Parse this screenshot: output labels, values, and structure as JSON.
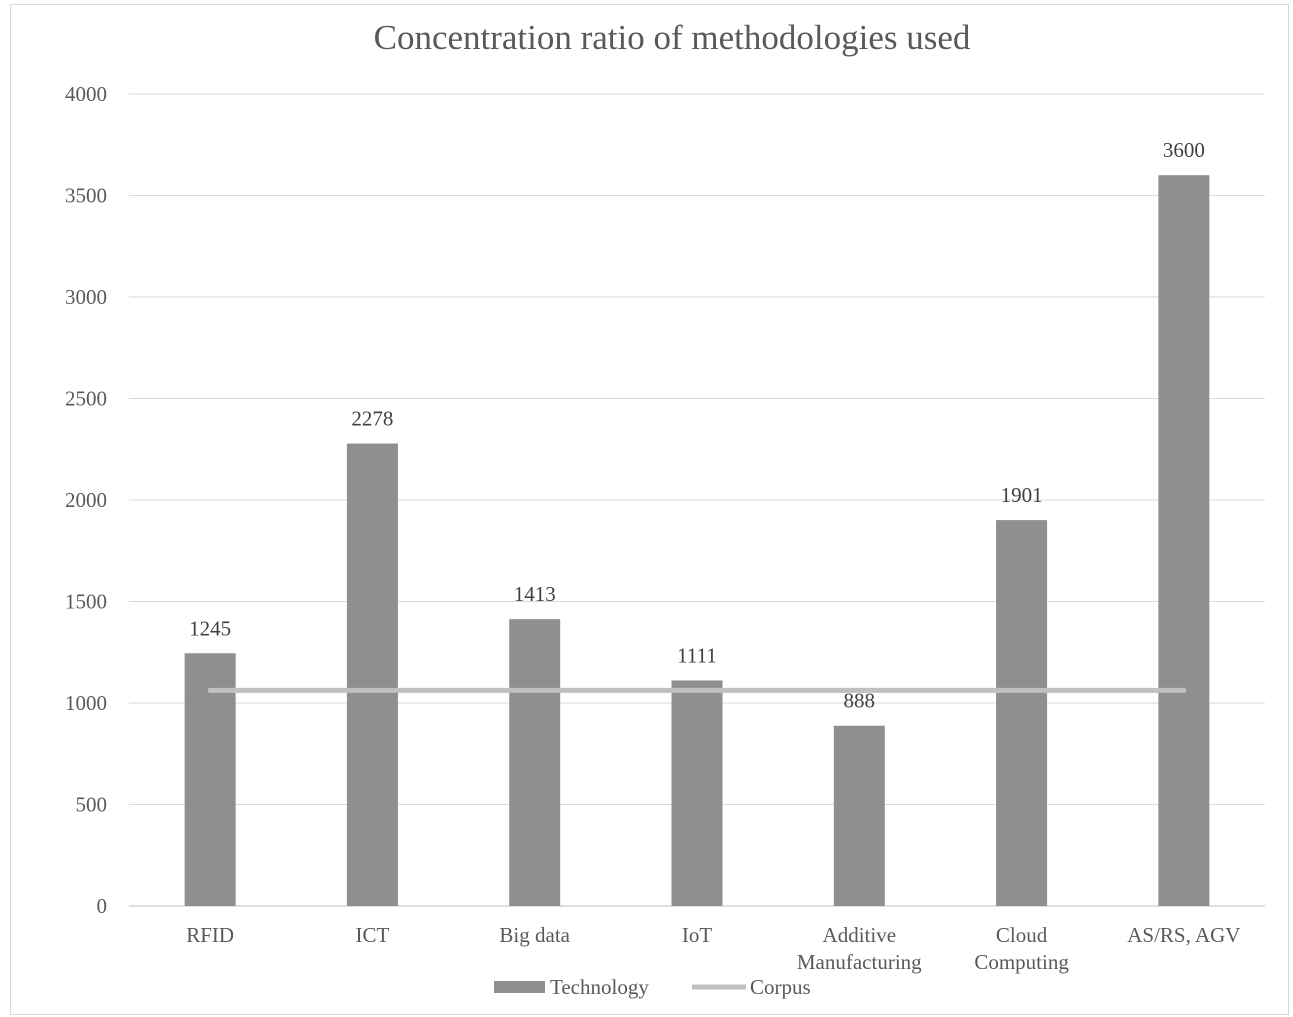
{
  "chart_data": {
    "type": "bar",
    "title": "Concentration ratio of methodologies used",
    "xlabel": "",
    "ylabel": "",
    "categories": [
      "RFID",
      "ICT",
      "Big data",
      "IoT",
      "Additive Manufacturing",
      "Cloud Computing",
      "AS/RS, AGV"
    ],
    "series": [
      {
        "name": "Technology",
        "type": "bar",
        "color": "#8f8f8f",
        "values": [
          1245,
          2278,
          1413,
          1111,
          888,
          1901,
          3600
        ],
        "data_labels": [
          "1245",
          "2278",
          "1413",
          "1111",
          "888",
          "1901",
          "3600"
        ]
      },
      {
        "name": "Corpus",
        "type": "line",
        "color": "#c0c0c0",
        "values": [
          1062,
          1062,
          1062,
          1062,
          1062,
          1062,
          1062
        ]
      }
    ],
    "ylim": [
      0,
      4000
    ],
    "yticks": [
      0,
      500,
      1000,
      1500,
      2000,
      2500,
      3000,
      3500,
      4000
    ],
    "grid": true,
    "legend_position": "bottom"
  }
}
